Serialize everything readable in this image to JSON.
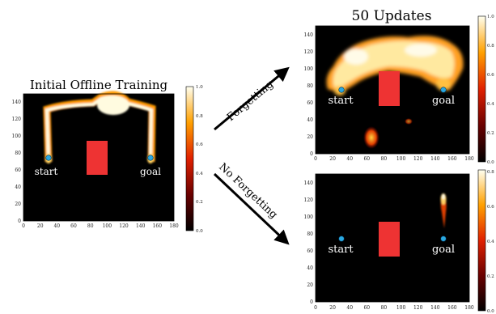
{
  "diagram": {
    "panels": [
      {
        "id": "initial",
        "title": "Initial Offline Training",
        "start_label": "start",
        "goal_label": "goal",
        "x_ticks": [
          "0",
          "20",
          "40",
          "60",
          "80",
          "100",
          "120",
          "140",
          "160",
          "180"
        ],
        "y_ticks": [
          "0",
          "20",
          "40",
          "60",
          "80",
          "100",
          "120",
          "140"
        ],
        "colorbar_ticks": [
          "0.0",
          "0.2",
          "0.4",
          "0.6",
          "0.8",
          "1.0"
        ]
      },
      {
        "id": "forgetting",
        "title": "50 Updates",
        "start_label": "start",
        "goal_label": "goal",
        "x_ticks": [
          "0",
          "20",
          "40",
          "60",
          "80",
          "100",
          "120",
          "140",
          "160",
          "180"
        ],
        "y_ticks": [
          "0",
          "20",
          "40",
          "60",
          "80",
          "100",
          "120",
          "140"
        ],
        "colorbar_ticks": [
          "0.0",
          "0.2",
          "0.4",
          "0.6",
          "0.8",
          "1.0"
        ]
      },
      {
        "id": "no-forgetting",
        "title": "",
        "start_label": "start",
        "goal_label": "goal",
        "x_ticks": [
          "0",
          "20",
          "40",
          "60",
          "80",
          "100",
          "120",
          "140",
          "160",
          "180"
        ],
        "y_ticks": [
          "0",
          "20",
          "40",
          "60",
          "80",
          "100",
          "120",
          "140"
        ],
        "colorbar_ticks": [
          "0.0",
          "0.2",
          "0.4",
          "0.6",
          "0.8"
        ]
      }
    ],
    "arrows": [
      {
        "label": "Forgetting"
      },
      {
        "label": "No Forgetting"
      }
    ],
    "colors": {
      "background": "#000000",
      "obstacle": "#ee3333",
      "marker": "#2aa8e0",
      "heat_low": "#b22200",
      "heat_mid": "#ff9a00",
      "heat_high": "#fffbe0"
    }
  }
}
